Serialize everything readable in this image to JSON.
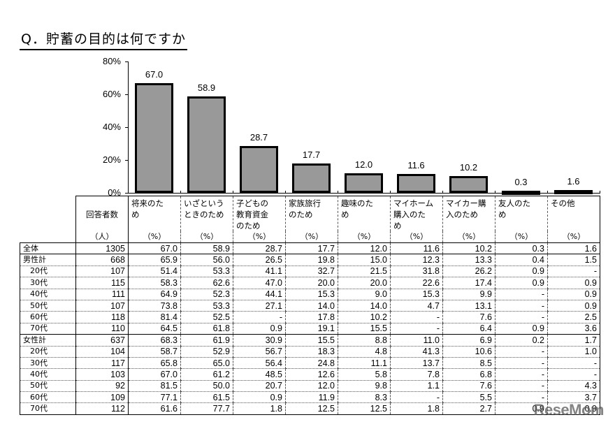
{
  "title": "Q．貯蓄の目的は何ですか",
  "chart_data": {
    "type": "bar",
    "title": "Q．貯蓄の目的は何ですか",
    "xlabel": "",
    "ylabel": "",
    "ylim": [
      0,
      80
    ],
    "yticks": [
      "0%",
      "20%",
      "40%",
      "60%",
      "80%"
    ],
    "grid": false,
    "legend": null,
    "categories": [
      "将来のため",
      "いざというときのため",
      "子どもの教育資金のため",
      "家族旅行のため",
      "趣味のため",
      "マイホーム購入のため",
      "マイカー購入のため",
      "友人のため",
      "その他"
    ],
    "values": [
      67.0,
      58.9,
      28.7,
      17.7,
      12.0,
      11.6,
      10.2,
      0.3,
      1.6
    ],
    "value_labels": [
      "67.0",
      "58.9",
      "28.7",
      "17.7",
      "12.0",
      "11.6",
      "10.2",
      "0.3",
      "1.6"
    ],
    "bar_color": "#999999"
  },
  "table": {
    "count_header": "回答者数",
    "count_unit": "（人）",
    "pct_unit": "（%）",
    "columns": [
      "将来のため",
      "いざというときのため",
      "子どもの教育資金のため",
      "家族旅行のため",
      "趣味のため",
      "マイホーム購入のため",
      "マイカー購入のため",
      "友人のため",
      "その他"
    ],
    "column_headers_display": [
      "将来のた め",
      "いざという ときのため",
      "子どもの 教育資金 のため",
      "家族旅行 のため",
      "趣味のた め",
      "マイホーム 購入のた め",
      "マイカー購 入のため",
      "友人のた め",
      "その他"
    ],
    "rows": [
      {
        "label": "全体",
        "count": "1305",
        "values": [
          "67.0",
          "58.9",
          "28.7",
          "17.7",
          "12.0",
          "11.6",
          "10.2",
          "0.3",
          "1.6"
        ]
      },
      {
        "label": "男性計",
        "count": "668",
        "values": [
          "65.9",
          "56.0",
          "26.5",
          "19.8",
          "15.0",
          "12.3",
          "13.3",
          "0.4",
          "1.5"
        ]
      },
      {
        "label": "20代",
        "count": "107",
        "values": [
          "51.4",
          "53.3",
          "41.1",
          "32.7",
          "21.5",
          "31.8",
          "26.2",
          "0.9",
          "-"
        ]
      },
      {
        "label": "30代",
        "count": "115",
        "values": [
          "58.3",
          "62.6",
          "47.0",
          "20.0",
          "20.0",
          "22.6",
          "17.4",
          "0.9",
          "0.9"
        ]
      },
      {
        "label": "40代",
        "count": "111",
        "values": [
          "64.9",
          "52.3",
          "44.1",
          "15.3",
          "9.0",
          "15.3",
          "9.9",
          "-",
          "0.9"
        ]
      },
      {
        "label": "50代",
        "count": "107",
        "values": [
          "73.8",
          "53.3",
          "27.1",
          "14.0",
          "14.0",
          "4.7",
          "13.1",
          "-",
          "0.9"
        ]
      },
      {
        "label": "60代",
        "count": "118",
        "values": [
          "81.4",
          "52.5",
          "-",
          "17.8",
          "10.2",
          "-",
          "7.6",
          "-",
          "2.5"
        ]
      },
      {
        "label": "70代",
        "count": "110",
        "values": [
          "64.5",
          "61.8",
          "0.9",
          "19.1",
          "15.5",
          "-",
          "6.4",
          "0.9",
          "3.6"
        ]
      },
      {
        "label": "女性計",
        "count": "637",
        "values": [
          "68.3",
          "61.9",
          "30.9",
          "15.5",
          "8.8",
          "11.0",
          "6.9",
          "0.2",
          "1.7"
        ]
      },
      {
        "label": "20代",
        "count": "104",
        "values": [
          "58.7",
          "52.9",
          "56.7",
          "18.3",
          "4.8",
          "41.3",
          "10.6",
          "-",
          "1.0"
        ]
      },
      {
        "label": "30代",
        "count": "117",
        "values": [
          "65.8",
          "65.0",
          "56.4",
          "24.8",
          "11.1",
          "13.7",
          "8.5",
          "-",
          "-"
        ]
      },
      {
        "label": "40代",
        "count": "103",
        "values": [
          "67.0",
          "61.2",
          "48.5",
          "12.6",
          "5.8",
          "7.8",
          "6.8",
          "-",
          "-"
        ]
      },
      {
        "label": "50代",
        "count": "92",
        "values": [
          "81.5",
          "50.0",
          "20.7",
          "12.0",
          "9.8",
          "1.1",
          "7.6",
          "-",
          "4.3"
        ]
      },
      {
        "label": "60代",
        "count": "109",
        "values": [
          "77.1",
          "61.5",
          "0.9",
          "11.9",
          "8.3",
          "-",
          "5.5",
          "-",
          "3.7"
        ]
      },
      {
        "label": "70代",
        "count": "112",
        "values": [
          "61.6",
          "77.7",
          "1.8",
          "12.5",
          "12.5",
          "1.8",
          "2.7",
          "0.9",
          "0.9"
        ]
      }
    ]
  },
  "watermark": "ReseMom"
}
